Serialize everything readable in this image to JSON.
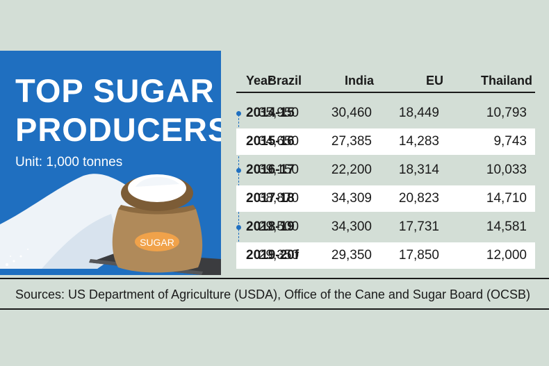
{
  "title": "TOP SUGAR PRODUCERS",
  "unit": "Unit: 1,000 tonnes",
  "sack_label": "SUGAR",
  "source": "Sources: US Department of Agriculture (USDA), Office of the Cane and Sugar Board (OCSB)",
  "colors": {
    "panel": "#1f6fc0",
    "background": "#d3ded6",
    "stripe": "#ffffff"
  },
  "chart_data": {
    "type": "table",
    "title": "TOP SUGAR PRODUCERS",
    "subtitle": "Unit: 1,000 tonnes",
    "columns": [
      "Year",
      "Brazil",
      "India",
      "EU",
      "Thailand"
    ],
    "rows": [
      [
        "2014-15",
        "35,950",
        "30,460",
        "18,449",
        "10,793"
      ],
      [
        "2015-16",
        "34,650",
        "27,385",
        "14,283",
        "9,743"
      ],
      [
        "2016-17",
        "39,150",
        "22,200",
        "18,314",
        "10,033"
      ],
      [
        "2017-18",
        "38,870",
        "34,309",
        "20,823",
        "14,710"
      ],
      [
        "2018-19",
        "29,500",
        "34,300",
        "17,731",
        "14,581"
      ],
      [
        "2019-20f",
        "29,350",
        "29,350",
        "17,850",
        "12,000"
      ]
    ]
  }
}
